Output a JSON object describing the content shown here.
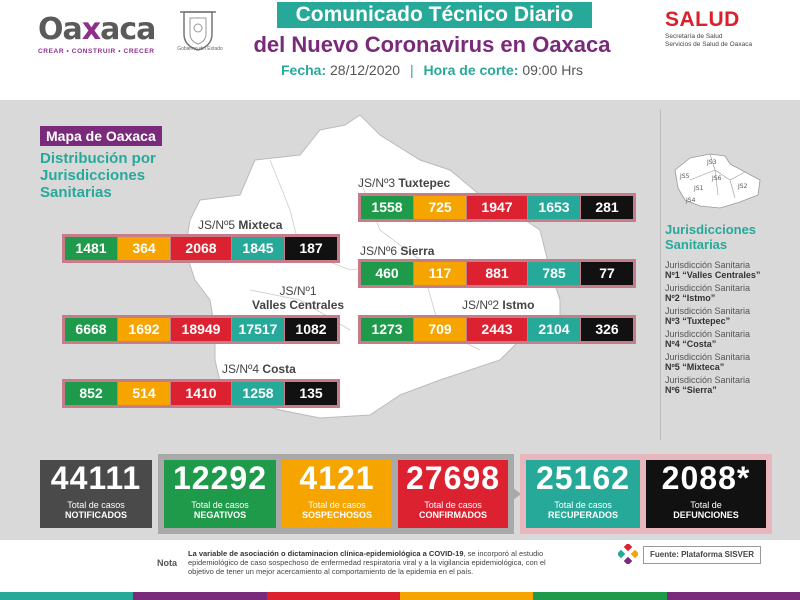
{
  "header": {
    "logo_word_a": "Oa",
    "logo_word_x": "x",
    "logo_word_b": "aca",
    "logo_tagline": "CREAR • CONSTRUIR • CRECER",
    "crest_label": "Gobierno del Estado",
    "title_line1": "Comunicado Técnico Diario",
    "title_line2": "del Nuevo Coronavirus en Oaxaca",
    "fecha_label": "Fecha:",
    "fecha_value": "28/12/2020",
    "hora_label": "Hora de corte:",
    "hora_value": "09:00 Hrs",
    "salud_logo": "SALUD",
    "salud_sub1": "Secretaría de Salud",
    "salud_sub2": "Servicios de Salud de Oaxaca"
  },
  "map": {
    "tag": "Mapa de Oaxaca",
    "subtitle": [
      "Distribución por",
      "Jurisdicciones",
      "Sanitarias"
    ]
  },
  "jurisdictions": [
    {
      "id": "js3",
      "label_pre": "JS/Nº3",
      "label_name": "Tuxtepec",
      "values": [
        "1558",
        "725",
        "1947",
        "1653",
        "281"
      ]
    },
    {
      "id": "js5",
      "label_pre": "JS/Nº5",
      "label_name": "Mixteca",
      "values": [
        "1481",
        "364",
        "2068",
        "1845",
        "187"
      ]
    },
    {
      "id": "js6",
      "label_pre": "JS/Nº6",
      "label_name": "Sierra",
      "values": [
        "460",
        "117",
        "881",
        "785",
        "77"
      ]
    },
    {
      "id": "js1",
      "label_pre": "JS/Nº1",
      "label_name": "Valles Centrales",
      "values": [
        "6668",
        "1692",
        "18949",
        "17517",
        "1082"
      ]
    },
    {
      "id": "js2",
      "label_pre": "JS/Nº2",
      "label_name": "Istmo",
      "values": [
        "1273",
        "709",
        "2443",
        "2104",
        "326"
      ]
    },
    {
      "id": "js4",
      "label_pre": "JS/Nº4",
      "label_name": "Costa",
      "values": [
        "852",
        "514",
        "1410",
        "1258",
        "135"
      ]
    }
  ],
  "legend": {
    "title": [
      "Jurisdicciones",
      "Sanitarias"
    ],
    "mini_map_labels": [
      "JS3",
      "JS5",
      "JS6",
      "JS1",
      "JS2",
      "JS4"
    ],
    "items": [
      {
        "line1": "Jurisdicción Sanitaria",
        "line2": "Nº1 “Valles Centrales”"
      },
      {
        "line1": "Jurisdicción Sanitaria",
        "line2": "Nº2 “Istmo”"
      },
      {
        "line1": "Jurisdicción Sanitaria",
        "line2": "Nº3 “Tuxtepec”"
      },
      {
        "line1": "Jurisdicción Sanitaria",
        "line2": "Nº4 “Costa”"
      },
      {
        "line1": "Jurisdicción Sanitaria",
        "line2": "Nº5 “Mixteca”"
      },
      {
        "line1": "Jurisdicción Sanitaria",
        "line2": "Nº6 “Sierra”"
      }
    ]
  },
  "totals": {
    "notificados": {
      "value": "44111",
      "l1": "Total de casos",
      "l2": "NOTIFICADOS"
    },
    "negativos": {
      "value": "12292",
      "l1": "Total de casos",
      "l2": "NEGATIVOS"
    },
    "sospechosos": {
      "value": "4121",
      "l1": "Total de casos",
      "l2": "SOSPECHOSOS"
    },
    "confirmados": {
      "value": "27698",
      "l1": "Total de casos",
      "l2": "CONFIRMADOS"
    },
    "recuperados": {
      "value": "25162",
      "l1": "Total de casos",
      "l2": "RECUPERADOS"
    },
    "defunciones": {
      "value": "2088*",
      "l1": "Total de",
      "l2": "DEFUNCIONES"
    }
  },
  "footer": {
    "nota_label": "Nota",
    "nota_bold": "La variable de asociación o dictaminacion clínica-epidemiológica a COVID-19",
    "nota_rest": ", se incorporó al estudio epidemiológico de caso sospechoso de enfermedad respiratoria viral y a la vigilancia epidemiológica, con el objetivo de tener un mejor acercamiento al comportamiento de la epidemia en el país.",
    "fuente": "Fuente: Plataforma SISVER"
  },
  "colors": {
    "green": "#1f9a4a",
    "yellow": "#f5a400",
    "red": "#dc2230",
    "teal": "#27a99a",
    "black": "#111111",
    "purple": "#7a2a7a",
    "gray": "#555555"
  }
}
